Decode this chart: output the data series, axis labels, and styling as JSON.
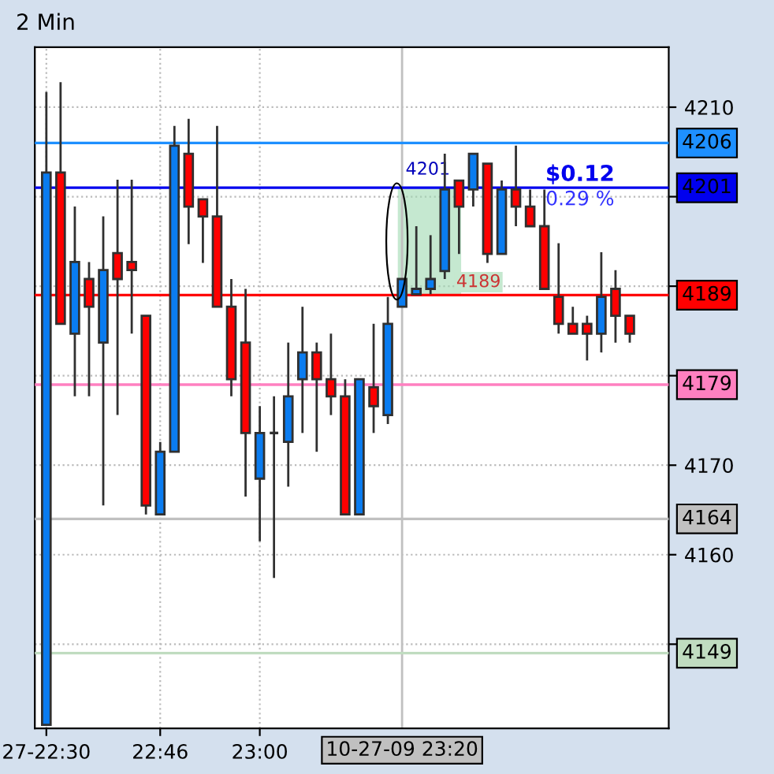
{
  "chart_data": {
    "type": "candlestick",
    "title": "2 Min",
    "x": [
      22.5,
      22.5333,
      22.5667,
      22.6,
      22.6333,
      22.6667,
      22.7,
      22.7333,
      22.7667,
      22.8,
      22.8333,
      22.8667,
      22.9,
      22.9333,
      22.9667,
      23.0,
      23.0333,
      23.0667,
      23.1,
      23.1333,
      23.1667,
      23.2,
      23.2333,
      23.2667,
      23.3,
      23.3333,
      23.3667,
      23.4,
      23.4333,
      23.4667,
      23.5,
      23.5333,
      23.5667,
      23.6,
      23.6333,
      23.6667,
      23.7,
      23.7333,
      23.7667,
      23.8,
      23.8333,
      23.8667
    ],
    "ohlc": [
      [
        4141,
        4211.7,
        4141,
        4202.7
      ],
      [
        4202.7,
        4212.8,
        4185.8,
        4185.8
      ],
      [
        4184.7,
        4198.9,
        4177.7,
        4192.7
      ],
      [
        4190.8,
        4192.7,
        4177.7,
        4187.7
      ],
      [
        4183.7,
        4197.8,
        4165.5,
        4191.8
      ],
      [
        4193.7,
        4201.9,
        4175.6,
        4190.8
      ],
      [
        4192.7,
        4201.9,
        4184.7,
        4191.8
      ],
      [
        4186.7,
        4186.7,
        4164.5,
        4165.5
      ],
      [
        4164.5,
        4172.6,
        4164.5,
        4171.5
      ],
      [
        4171.5,
        4207.9,
        4171.5,
        4205.7
      ],
      [
        4204.8,
        4208.7,
        4194.7,
        4198.9
      ],
      [
        4199.7,
        4199.7,
        4192.6,
        4197.8
      ],
      [
        4197.8,
        4207.9,
        4187.7,
        4187.7
      ],
      [
        4187.7,
        4190.8,
        4177.7,
        4179.6
      ],
      [
        4183.7,
        4189.7,
        4166.5,
        4173.6
      ],
      [
        4168.5,
        4176.6,
        4161.5,
        4173.6
      ],
      [
        4173.6,
        4177.7,
        4157.4,
        4173.6
      ],
      [
        4172.6,
        4183.7,
        4167.6,
        4177.7
      ],
      [
        4179.6,
        4187.7,
        4173.6,
        4182.6
      ],
      [
        4182.6,
        4183.7,
        4171.5,
        4179.6
      ],
      [
        4179.6,
        4184.7,
        4175.6,
        4177.7
      ],
      [
        4177.7,
        4179.6,
        4164.5,
        4164.5
      ],
      [
        4164.5,
        4179.6,
        4164.5,
        4179.6
      ],
      [
        4178.7,
        4185.8,
        4173.6,
        4176.6
      ],
      [
        4175.6,
        4188.8,
        4174.6,
        4185.8
      ],
      [
        4187.7,
        4190.8,
        4187.7,
        4190.8
      ],
      [
        4189.1,
        4196.7,
        4189.1,
        4189.7
      ],
      [
        4189.7,
        4195.7,
        4189.1,
        4190.8
      ],
      [
        4191.7,
        4204.8,
        4190.8,
        4200.8
      ],
      [
        4201.8,
        4201.8,
        4193.6,
        4198.9
      ],
      [
        4200.8,
        4204.8,
        4198.9,
        4204.8
      ],
      [
        4203.7,
        4203.7,
        4192.6,
        4193.6
      ],
      [
        4193.6,
        4201.8,
        4193.6,
        4200.8
      ],
      [
        4200.8,
        4205.7,
        4196.7,
        4198.9
      ],
      [
        4198.9,
        4200.8,
        4196.7,
        4196.7
      ],
      [
        4196.7,
        4200.8,
        4189.7,
        4189.7
      ],
      [
        4188.8,
        4194.8,
        4184.7,
        4185.8
      ],
      [
        4185.8,
        4187.7,
        4184.7,
        4184.7
      ],
      [
        4185.8,
        4186.7,
        4181.7,
        4184.7
      ],
      [
        4184.7,
        4193.8,
        4182.6,
        4188.8
      ],
      [
        4189.7,
        4191.8,
        4183.7,
        4186.7
      ],
      [
        4186.7,
        4186.7,
        4183.7,
        4184.7
      ]
    ],
    "colors": [
      "#0a7cf0",
      "#ff0000",
      "#0a7cf0",
      "#ff0000",
      "#0a7cf0",
      "#ff0000",
      "#ff0000",
      "#ff0000",
      "#0a7cf0",
      "#0a7cf0",
      "#ff0000",
      "#ff0000",
      "#ff0000",
      "#ff0000",
      "#ff0000",
      "#0a7cf0",
      "#303030",
      "#0a7cf0",
      "#0a7cf0",
      "#ff0000",
      "#ff0000",
      "#ff0000",
      "#0a7cf0",
      "#ff0000",
      "#0a7cf0",
      "#0a7cf0",
      "#0a7cf0",
      "#0a7cf0",
      "#0a7cf0",
      "#ff0000",
      "#0a7cf0",
      "#ff0000",
      "#0a7cf0",
      "#ff0000",
      "#ff0000",
      "#ff0000",
      "#ff0000",
      "#ff0000",
      "#ff0000",
      "#0a7cf0",
      "#ff0000",
      "#ff0000"
    ],
    "xlim": [
      22.473,
      23.958
    ],
    "ylim": [
      4140.6,
      4216.7
    ],
    "xticks": [
      {
        "value": 22.5,
        "label": "27-22:30"
      },
      {
        "value": 22.7667,
        "label": "22:46"
      },
      {
        "value": 23.0,
        "label": "23:00"
      }
    ],
    "yticks": [
      {
        "value": 4150,
        "label": null
      },
      4160,
      4170,
      {
        "value": 4180,
        "label": null
      },
      {
        "value": 4190,
        "label": null
      },
      {
        "value": 4200,
        "label": null
      },
      4210
    ],
    "grid": true,
    "ref_lines": [
      {
        "axis": "y",
        "value": 4206,
        "label": "4206",
        "color": "#1e90ff"
      },
      {
        "axis": "y",
        "value": 4201,
        "label": "4201",
        "color": "#0000ee"
      },
      {
        "axis": "y",
        "value": 4189,
        "label": "4189",
        "color": "#ff0000"
      },
      {
        "axis": "y",
        "value": 4179,
        "label": "4179",
        "color": "#ff80c0"
      },
      {
        "axis": "y",
        "value": 4164,
        "label": "4164",
        "color": "#c0c0c0"
      },
      {
        "axis": "y",
        "value": 4149,
        "label": "4149",
        "color": "#c0dcc0"
      },
      {
        "axis": "x",
        "value": 23.3333,
        "label": "10-27-09 23:20",
        "color": "#c0c0c0"
      }
    ],
    "annotations": [
      "$0.12",
      "0.29 %",
      "4201",
      "4189"
    ]
  }
}
